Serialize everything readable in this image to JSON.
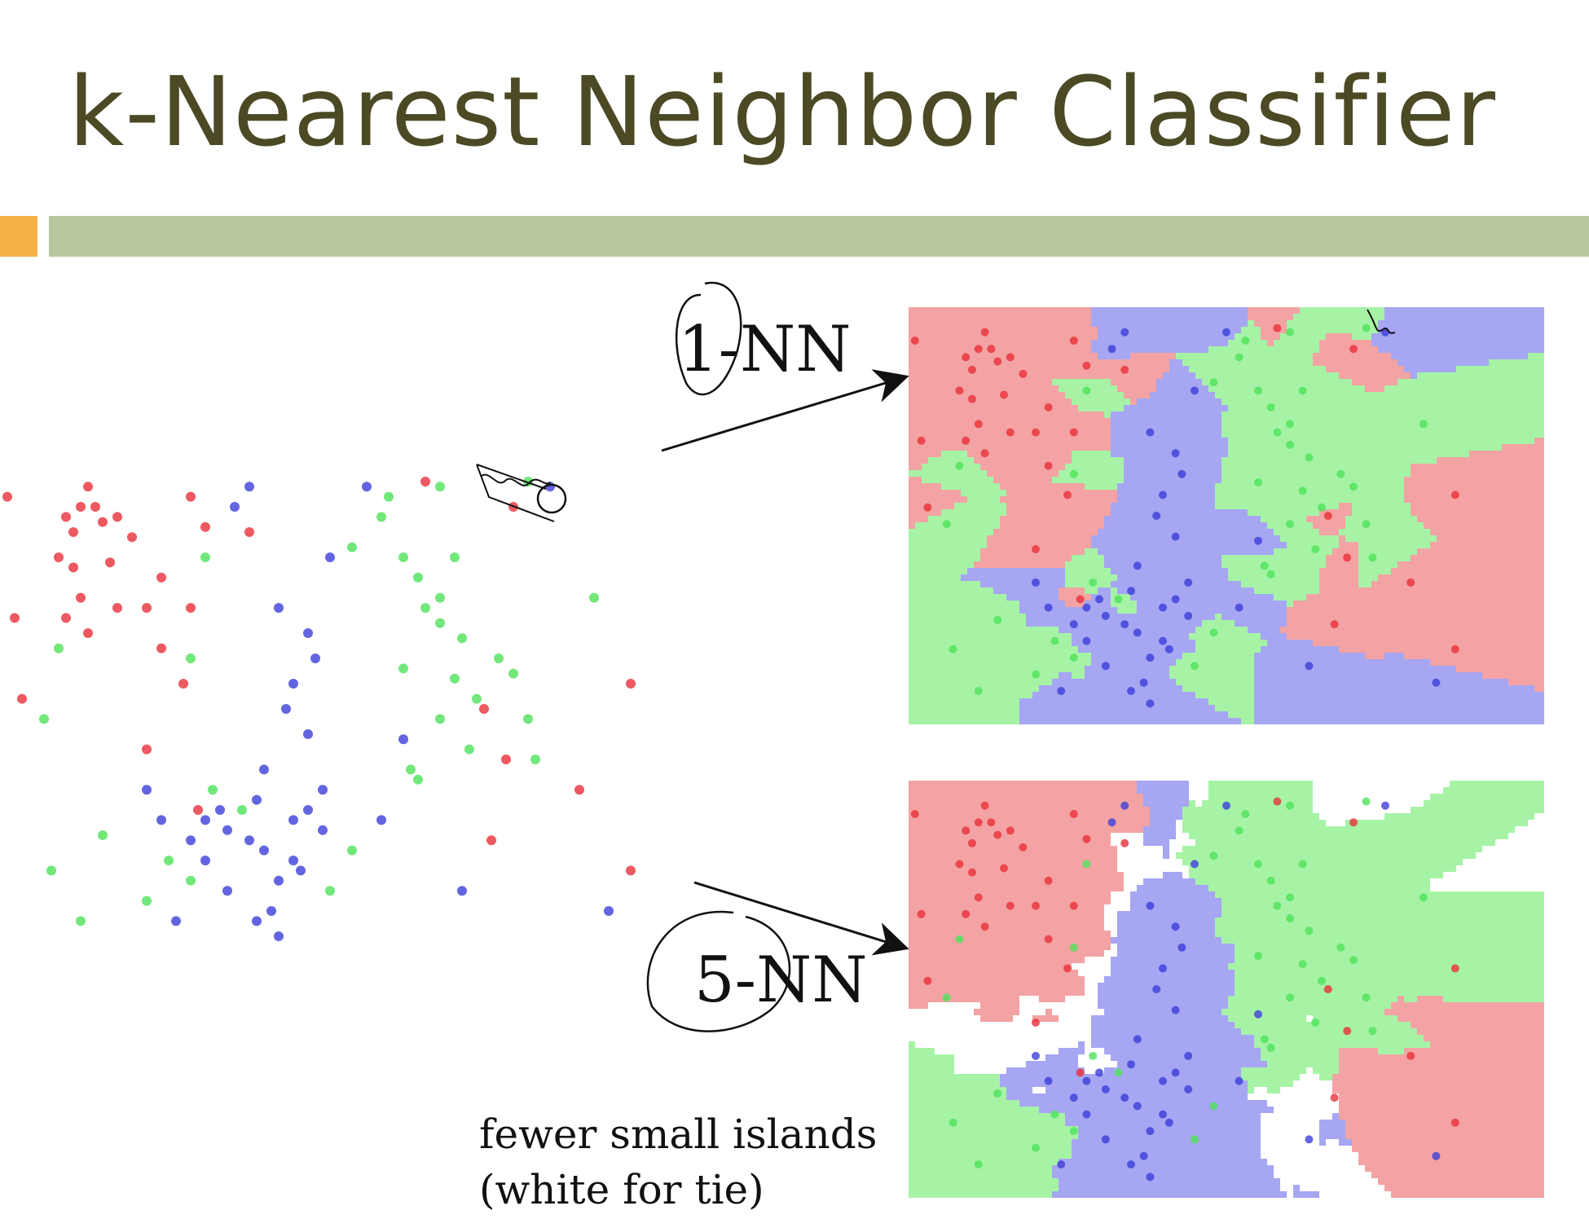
{
  "title": "k-Nearest Neighbor Classifier",
  "labels": {
    "one_nn": "1-NN",
    "five_nn": "5-NN"
  },
  "caption": {
    "line1": "fewer small islands",
    "line2": "(white for tie)"
  },
  "colors": {
    "title": "#4b4a24",
    "accent": "#f5b347",
    "bar": "#b6c69e",
    "red_point": "#e8303a",
    "green_point": "#4fe25a",
    "blue_point": "#3c3fd8",
    "red_region": "#f3a3a3",
    "green_region": "#a6f3a6",
    "blue_region": "#a6a6f3",
    "tie_region": "#ffffff"
  },
  "diagram": {
    "classes": [
      "red",
      "green",
      "blue"
    ],
    "points": {
      "red": [
        [
          0.01,
          0.08
        ],
        [
          0.12,
          0.06
        ],
        [
          0.11,
          0.1
        ],
        [
          0.09,
          0.12
        ],
        [
          0.1,
          0.15
        ],
        [
          0.13,
          0.1
        ],
        [
          0.14,
          0.13
        ],
        [
          0.16,
          0.12
        ],
        [
          0.18,
          0.16
        ],
        [
          0.08,
          0.2
        ],
        [
          0.1,
          0.22
        ],
        [
          0.15,
          0.21
        ],
        [
          0.11,
          0.28
        ],
        [
          0.09,
          0.32
        ],
        [
          0.12,
          0.35
        ],
        [
          0.16,
          0.3
        ],
        [
          0.2,
          0.3
        ],
        [
          0.22,
          0.24
        ],
        [
          0.26,
          0.3
        ],
        [
          0.22,
          0.38
        ],
        [
          0.26,
          0.08
        ],
        [
          0.28,
          0.14
        ],
        [
          0.34,
          0.15
        ],
        [
          0.25,
          0.45
        ],
        [
          0.2,
          0.58
        ],
        [
          0.02,
          0.32
        ],
        [
          0.03,
          0.48
        ],
        [
          0.27,
          0.7
        ],
        [
          0.58,
          0.05
        ],
        [
          0.7,
          0.1
        ],
        [
          0.66,
          0.5
        ],
        [
          0.69,
          0.6
        ],
        [
          0.67,
          0.76
        ],
        [
          0.79,
          0.66
        ],
        [
          0.86,
          0.45
        ],
        [
          0.86,
          0.82
        ]
      ],
      "green": [
        [
          0.06,
          0.52
        ],
        [
          0.08,
          0.38
        ],
        [
          0.07,
          0.82
        ],
        [
          0.11,
          0.92
        ],
        [
          0.26,
          0.4
        ],
        [
          0.26,
          0.84
        ],
        [
          0.29,
          0.66
        ],
        [
          0.33,
          0.7
        ],
        [
          0.48,
          0.18
        ],
        [
          0.52,
          0.12
        ],
        [
          0.55,
          0.2
        ],
        [
          0.57,
          0.24
        ],
        [
          0.6,
          0.28
        ],
        [
          0.62,
          0.2
        ],
        [
          0.58,
          0.3
        ],
        [
          0.6,
          0.33
        ],
        [
          0.63,
          0.36
        ],
        [
          0.55,
          0.42
        ],
        [
          0.62,
          0.44
        ],
        [
          0.65,
          0.48
        ],
        [
          0.68,
          0.4
        ],
        [
          0.7,
          0.43
        ],
        [
          0.72,
          0.52
        ],
        [
          0.6,
          0.52
        ],
        [
          0.56,
          0.62
        ],
        [
          0.64,
          0.58
        ],
        [
          0.48,
          0.78
        ],
        [
          0.45,
          0.86
        ],
        [
          0.72,
          0.05
        ],
        [
          0.6,
          0.06
        ],
        [
          0.53,
          0.08
        ],
        [
          0.81,
          0.28
        ],
        [
          0.57,
          0.64
        ],
        [
          0.2,
          0.88
        ],
        [
          0.23,
          0.8
        ],
        [
          0.14,
          0.75
        ],
        [
          0.28,
          0.2
        ],
        [
          0.73,
          0.6
        ]
      ],
      "blue": [
        [
          0.32,
          0.1
        ],
        [
          0.34,
          0.06
        ],
        [
          0.38,
          0.3
        ],
        [
          0.45,
          0.2
        ],
        [
          0.42,
          0.35
        ],
        [
          0.43,
          0.4
        ],
        [
          0.4,
          0.45
        ],
        [
          0.39,
          0.5
        ],
        [
          0.42,
          0.55
        ],
        [
          0.36,
          0.62
        ],
        [
          0.35,
          0.68
        ],
        [
          0.3,
          0.7
        ],
        [
          0.28,
          0.72
        ],
        [
          0.31,
          0.74
        ],
        [
          0.34,
          0.76
        ],
        [
          0.36,
          0.78
        ],
        [
          0.4,
          0.72
        ],
        [
          0.42,
          0.7
        ],
        [
          0.44,
          0.74
        ],
        [
          0.4,
          0.8
        ],
        [
          0.38,
          0.84
        ],
        [
          0.41,
          0.82
        ],
        [
          0.44,
          0.66
        ],
        [
          0.2,
          0.66
        ],
        [
          0.22,
          0.72
        ],
        [
          0.26,
          0.76
        ],
        [
          0.28,
          0.8
        ],
        [
          0.31,
          0.86
        ],
        [
          0.35,
          0.92
        ],
        [
          0.38,
          0.95
        ],
        [
          0.5,
          0.06
        ],
        [
          0.55,
          0.56
        ],
        [
          0.52,
          0.72
        ],
        [
          0.63,
          0.86
        ],
        [
          0.75,
          0.06
        ],
        [
          0.83,
          0.9
        ],
        [
          0.24,
          0.92
        ],
        [
          0.37,
          0.9
        ]
      ]
    }
  }
}
